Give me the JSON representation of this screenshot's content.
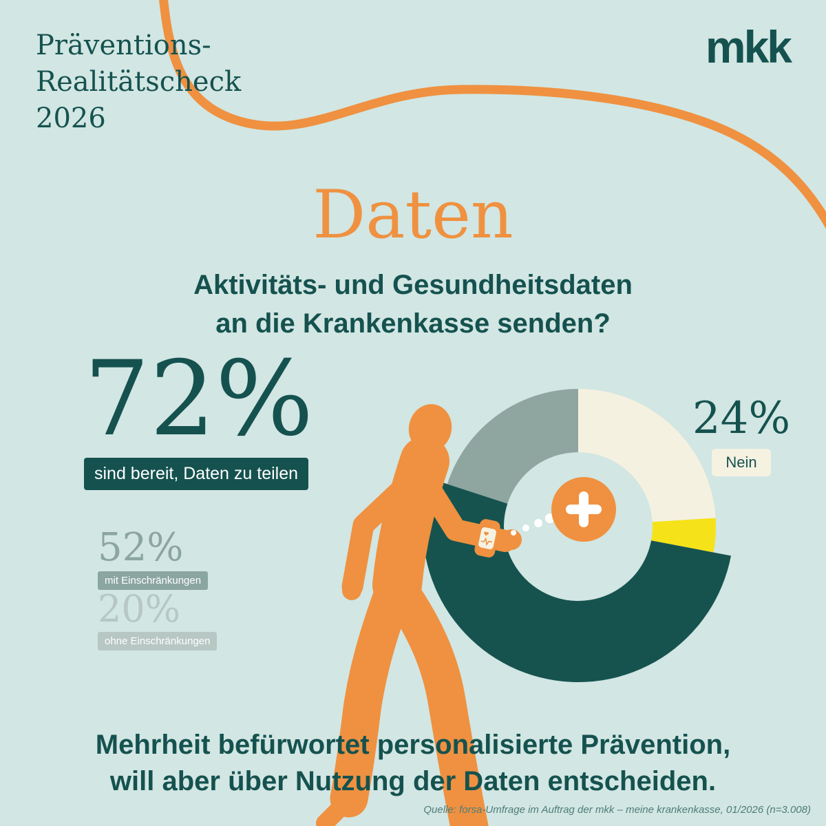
{
  "header": {
    "title_line1": "Präventions-",
    "title_line2": "Realitätscheck",
    "title_line3": "2026",
    "logo_text": "mkk"
  },
  "main": {
    "heading": "Daten",
    "question_line1": "Aktivitäts- und Gesundheitsdaten",
    "question_line2": "an die Krankenkasse senden?"
  },
  "stats": {
    "share_value": "72%",
    "share_label": "sind bereit, Daten zu teilen",
    "restricted_value": "52%",
    "restricted_label": "mit Einschränkungen",
    "unrestricted_value": "20%",
    "unrestricted_label": "ohne Einschränkungen",
    "no_value": "24%",
    "no_label": "Nein"
  },
  "conclusion": {
    "line1": "Mehrheit befürwortet personalisierte Prävention,",
    "line2": "will aber über Nutzung der Daten entscheiden."
  },
  "source": "Quelle: forsa-Umfrage im Auftrag der mkk – meine krankenkasse, 01/2026 (n=3.008)",
  "icons": {
    "plus_icon": "+",
    "heart_icon": "♥",
    "watch_icon": "smartwatch",
    "runner_figure": "running person silhouette"
  },
  "colors": {
    "background": "#d2e6e3",
    "dark_teal": "#15524f",
    "orange": "#ef9140",
    "sage": "#8ba5a1",
    "light_gray": "#b7c7c3",
    "cream": "#f6f2e2",
    "yellow": "#f6e219"
  },
  "chart_data": {
    "type": "pie",
    "donut": true,
    "title": "Aktivitäts- und Gesundheitsdaten an die Krankenkasse senden?",
    "legend_position": "around",
    "slices": [
      {
        "id": "nein",
        "label": "Nein",
        "value": 24,
        "color": "#f5f1e1"
      },
      {
        "id": "rest",
        "label": "",
        "value": 4,
        "color": "#f6e219"
      },
      {
        "id": "mit-einschraenkungen",
        "label": "mit Einschränkungen",
        "value": 52,
        "color": "#16534f",
        "emphasis": true
      },
      {
        "id": "ohne-einschraenkungen",
        "label": "ohne Einschränkungen",
        "value": 20,
        "color": "#8fa5a0"
      }
    ],
    "total_ja": 72
  }
}
